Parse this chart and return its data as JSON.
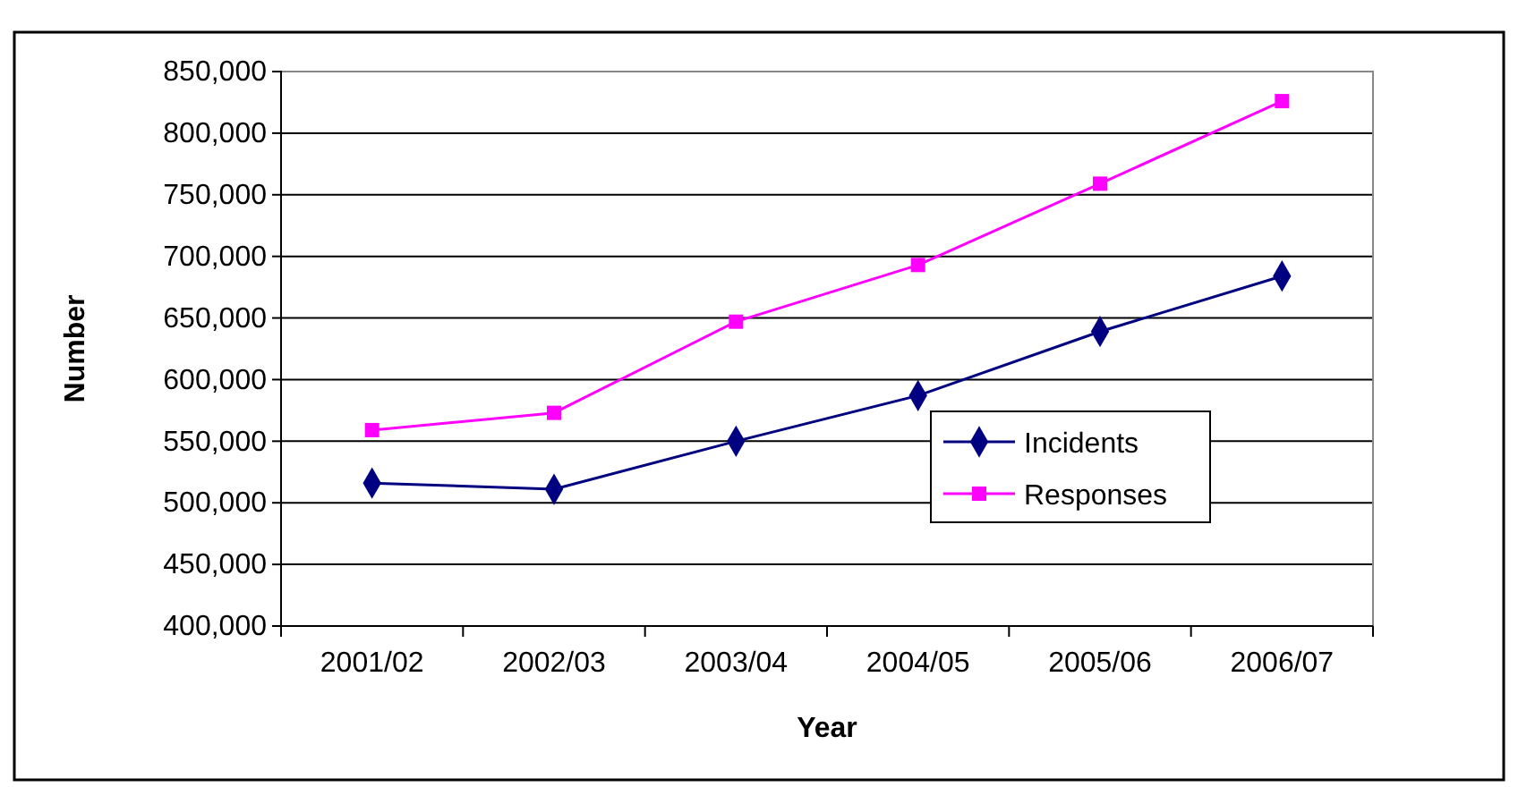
{
  "chart_data": {
    "type": "line",
    "xlabel": "Year",
    "ylabel": "Number",
    "categories": [
      "2001/02",
      "2002/03",
      "2003/04",
      "2004/05",
      "2005/06",
      "2006/07"
    ],
    "series": [
      {
        "name": "Incidents",
        "color": "#000080",
        "marker": "diamond",
        "values": [
          516000,
          511000,
          550000,
          587000,
          639000,
          684000
        ]
      },
      {
        "name": "Responses",
        "color": "#ff00ff",
        "marker": "square",
        "values": [
          559000,
          573000,
          647000,
          693000,
          759000,
          826000
        ]
      }
    ],
    "ylim": [
      400000,
      850000
    ],
    "yticks": [
      {
        "value": 400000,
        "label": "400,000"
      },
      {
        "value": 450000,
        "label": "450,000"
      },
      {
        "value": 500000,
        "label": "500,000"
      },
      {
        "value": 550000,
        "label": "550,000"
      },
      {
        "value": 600000,
        "label": "600,000"
      },
      {
        "value": 650000,
        "label": "650,000"
      },
      {
        "value": 700000,
        "label": "700,000"
      },
      {
        "value": 750000,
        "label": "750,000"
      },
      {
        "value": 800000,
        "label": "800,000"
      },
      {
        "value": 850000,
        "label": "850,000"
      }
    ],
    "grid": "y",
    "legend": "right"
  }
}
